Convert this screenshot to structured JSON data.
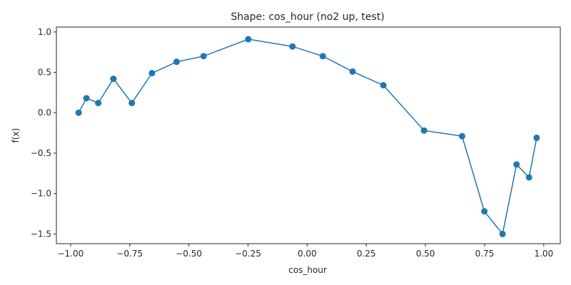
{
  "chart_data": {
    "type": "line",
    "title": "Shape: cos_hour (no2 up, test)",
    "xlabel": "cos_hour",
    "ylabel": "f(x)",
    "xlim": [
      -1.06,
      1.07
    ],
    "ylim": [
      -1.62,
      1.06
    ],
    "xticks": [
      -1.0,
      -0.75,
      -0.5,
      -0.25,
      0.0,
      0.25,
      0.5,
      0.75,
      1.0
    ],
    "xtick_labels": [
      "−1.00",
      "−0.75",
      "−0.50",
      "−0.25",
      "0.00",
      "0.25",
      "0.50",
      "0.75",
      "1.00"
    ],
    "yticks": [
      1.0,
      0.5,
      0.0,
      -0.5,
      -1.0,
      -1.5
    ],
    "ytick_labels": [
      "1.0",
      "0.5",
      "0.0",
      "−0.5",
      "−1.0",
      "−1.5"
    ],
    "grid": false,
    "color": "#1f77b4",
    "markers": true,
    "series": [
      {
        "x": [
          -0.966,
          -0.933,
          -0.883,
          -0.819,
          -0.741,
          -0.656,
          -0.552,
          -0.438,
          -0.249,
          -0.062,
          0.066,
          0.192,
          0.322,
          0.494,
          0.655,
          0.749,
          0.826,
          0.885,
          0.938,
          0.97
        ],
        "y": [
          0.0,
          0.18,
          0.12,
          0.42,
          0.12,
          0.49,
          0.63,
          0.7,
          0.91,
          0.82,
          0.7,
          0.51,
          0.34,
          -0.22,
          -0.29,
          -1.22,
          -1.5,
          -0.64,
          -0.8,
          -0.31
        ]
      }
    ]
  }
}
